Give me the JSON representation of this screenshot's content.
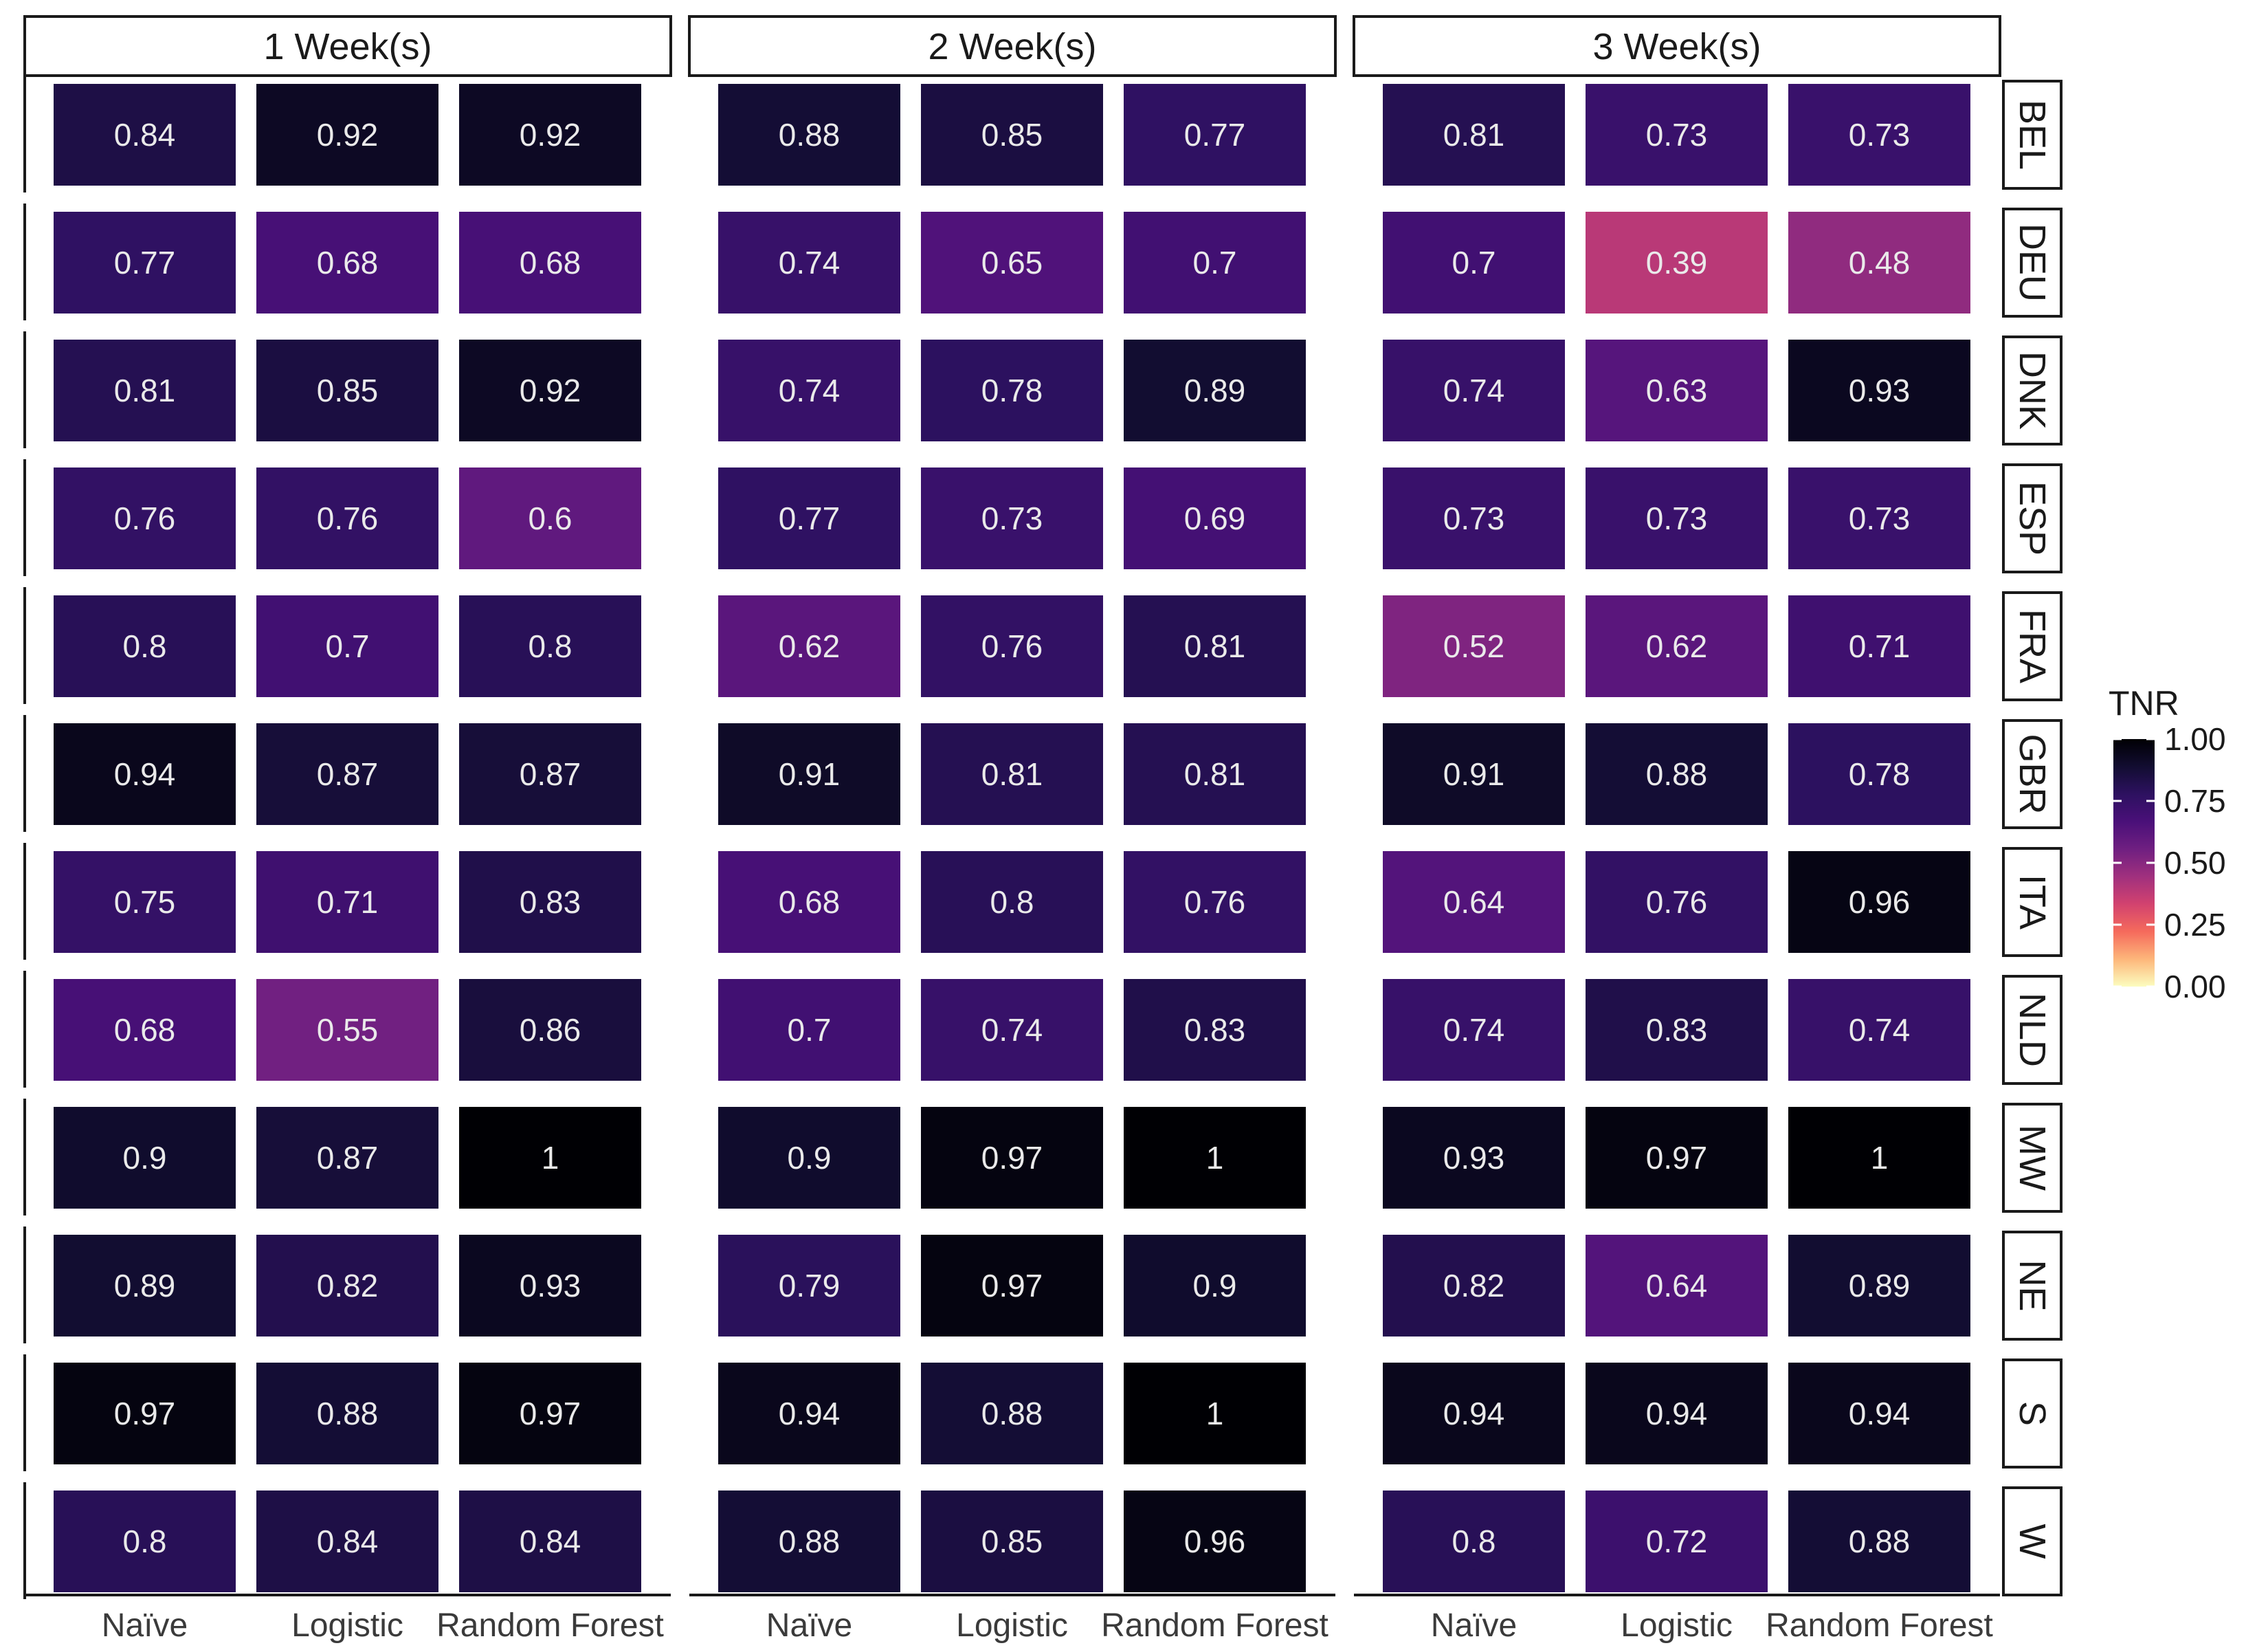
{
  "chart_data": {
    "type": "heatmap",
    "title": "",
    "xlabel": "",
    "ylabel": "",
    "facets": [
      "1 Week(s)",
      "2 Week(s)",
      "3 Week(s)"
    ],
    "rows": [
      "BEL",
      "DEU",
      "DNK",
      "ESP",
      "FRA",
      "GBR",
      "ITA",
      "NLD",
      "MW",
      "NE",
      "S",
      "W"
    ],
    "columns": [
      "Naïve",
      "Logistic",
      "Random Forest"
    ],
    "values": {
      "1 Week(s)": [
        [
          0.84,
          0.92,
          0.92
        ],
        [
          0.77,
          0.68,
          0.68
        ],
        [
          0.81,
          0.85,
          0.92
        ],
        [
          0.76,
          0.76,
          0.6
        ],
        [
          0.8,
          0.7,
          0.8
        ],
        [
          0.94,
          0.87,
          0.87
        ],
        [
          0.75,
          0.71,
          0.83
        ],
        [
          0.68,
          0.55,
          0.86
        ],
        [
          0.9,
          0.87,
          1
        ],
        [
          0.89,
          0.82,
          0.93
        ],
        [
          0.97,
          0.88,
          0.97
        ],
        [
          0.8,
          0.84,
          0.84
        ]
      ],
      "2 Week(s)": [
        [
          0.88,
          0.85,
          0.77
        ],
        [
          0.74,
          0.65,
          0.7
        ],
        [
          0.74,
          0.78,
          0.89
        ],
        [
          0.77,
          0.73,
          0.69
        ],
        [
          0.62,
          0.76,
          0.81
        ],
        [
          0.91,
          0.81,
          0.81
        ],
        [
          0.68,
          0.8,
          0.76
        ],
        [
          0.7,
          0.74,
          0.83
        ],
        [
          0.9,
          0.97,
          1
        ],
        [
          0.79,
          0.97,
          0.9
        ],
        [
          0.94,
          0.88,
          1
        ],
        [
          0.88,
          0.85,
          0.96
        ]
      ],
      "3 Week(s)": [
        [
          0.81,
          0.73,
          0.73
        ],
        [
          0.7,
          0.39,
          0.48
        ],
        [
          0.74,
          0.63,
          0.93
        ],
        [
          0.73,
          0.73,
          0.73
        ],
        [
          0.52,
          0.62,
          0.71
        ],
        [
          0.91,
          0.88,
          0.78
        ],
        [
          0.64,
          0.76,
          0.96
        ],
        [
          0.74,
          0.83,
          0.74
        ],
        [
          0.93,
          0.97,
          1
        ],
        [
          0.82,
          0.64,
          0.89
        ],
        [
          0.94,
          0.94,
          0.94
        ],
        [
          0.8,
          0.72,
          0.88
        ]
      ]
    },
    "legend": {
      "title": "TNR",
      "ticks": [
        "1.00",
        "0.75",
        "0.50",
        "0.25",
        "0.00"
      ],
      "range": [
        0,
        1
      ],
      "position": "right",
      "colormap": "magma-reversed",
      "stops": [
        "#fcfdbf",
        "#fdb67a",
        "#f56a5c",
        "#d2426f",
        "#a0307e",
        "#6f1f81",
        "#4a1079",
        "#2d1160",
        "#120d31",
        "#000004"
      ]
    },
    "grid": false
  }
}
